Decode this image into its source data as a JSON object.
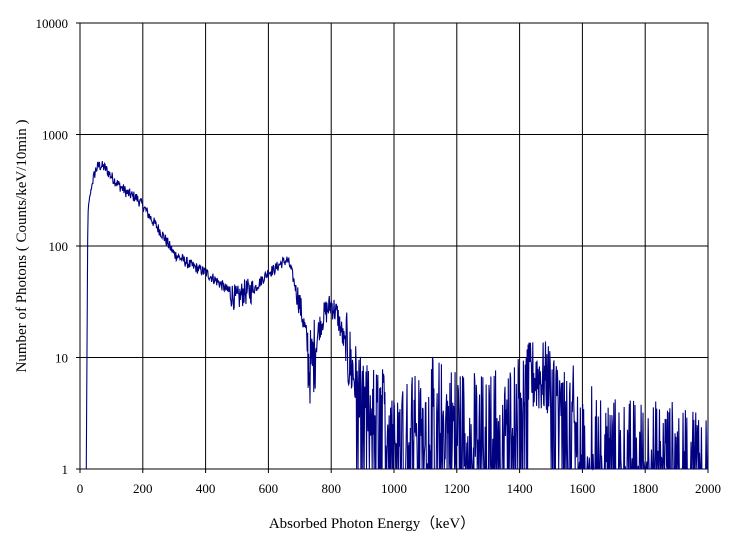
{
  "chart_data": {
    "type": "line",
    "xlabel": "Absorbed Photon Energy（keV）",
    "ylabel": "Number  of Photons ( Counts/keV/10min  )",
    "xlim": [
      0,
      2000
    ],
    "ylim": [
      1,
      10000
    ],
    "yscale": "log",
    "grid": true,
    "x_ticks": [
      "0",
      "200",
      "400",
      "600",
      "800",
      "1000",
      "1200",
      "1400",
      "1600",
      "1800",
      "2000"
    ],
    "y_ticks": [
      "1",
      "10",
      "100",
      "1000",
      "10000"
    ],
    "series_color": "#000080",
    "series": [
      {
        "x": [
          20,
          25,
          30,
          40,
          50,
          60,
          70,
          80,
          100,
          120,
          150,
          180,
          200,
          230,
          260,
          300,
          350,
          400,
          450,
          500,
          520,
          550,
          580,
          600,
          620,
          640,
          660,
          670,
          680,
          700,
          720,
          730,
          740,
          750,
          760,
          780,
          800,
          820,
          840,
          860,
          880,
          900,
          1000,
          1100,
          1200,
          1300,
          1400,
          1450,
          1500,
          1550,
          1600,
          1700,
          1800,
          1900,
          2000
        ],
        "y": [
          1,
          200,
          260,
          380,
          480,
          530,
          520,
          500,
          420,
          360,
          300,
          270,
          230,
          170,
          130,
          85,
          68,
          58,
          45,
          33,
          38,
          40,
          50,
          58,
          62,
          70,
          75,
          65,
          50,
          30,
          16,
          8,
          9,
          12,
          18,
          25,
          30,
          24,
          14,
          9,
          6,
          4,
          3.5,
          3,
          2.5,
          2,
          5,
          7,
          6,
          3,
          1.8,
          1.3,
          1.2,
          1.2,
          1.2
        ]
      }
    ]
  }
}
